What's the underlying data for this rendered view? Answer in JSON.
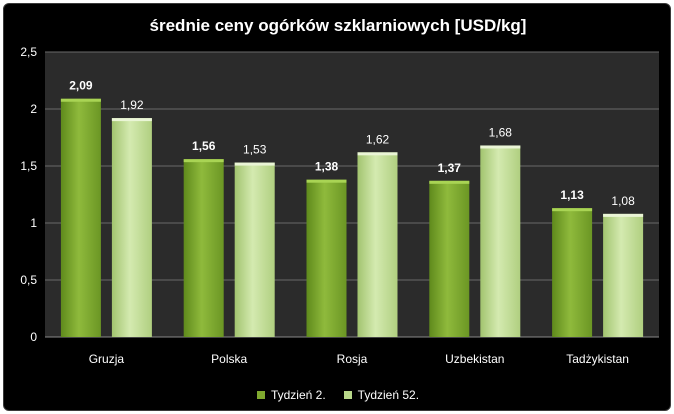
{
  "chart_data": {
    "type": "bar",
    "title": "średnie ceny ogórków szklarniowych [USD/kg]",
    "categories": [
      "Gruzja",
      "Polska",
      "Rosja",
      "Uzbekistan",
      "Tadżykistan"
    ],
    "series": [
      {
        "name": "Tydzień 2.",
        "values": [
          2.09,
          1.56,
          1.38,
          1.37,
          1.13
        ],
        "labels": [
          "2,09",
          "1,56",
          "1,38",
          "1,37",
          "1,13"
        ],
        "color": "#7fa82e",
        "bold_labels": true
      },
      {
        "name": "Tydzień 52.",
        "values": [
          1.92,
          1.53,
          1.62,
          1.68,
          1.08
        ],
        "labels": [
          "1,92",
          "1,53",
          "1,62",
          "1,68",
          "1,08"
        ],
        "color": "#b9d88a",
        "bold_labels": false
      }
    ],
    "y_ticks": [
      0,
      0.5,
      1,
      1.5,
      2,
      2.5
    ],
    "y_tick_labels": [
      "0",
      "0,5",
      "1",
      "1,5",
      "2",
      "2,5"
    ],
    "ylim": [
      0,
      2.5
    ],
    "grid": true,
    "legend_position": "bottom",
    "background": "#000000",
    "plot_background": "#2b2b2b",
    "grid_color": "#6a6a6a"
  }
}
